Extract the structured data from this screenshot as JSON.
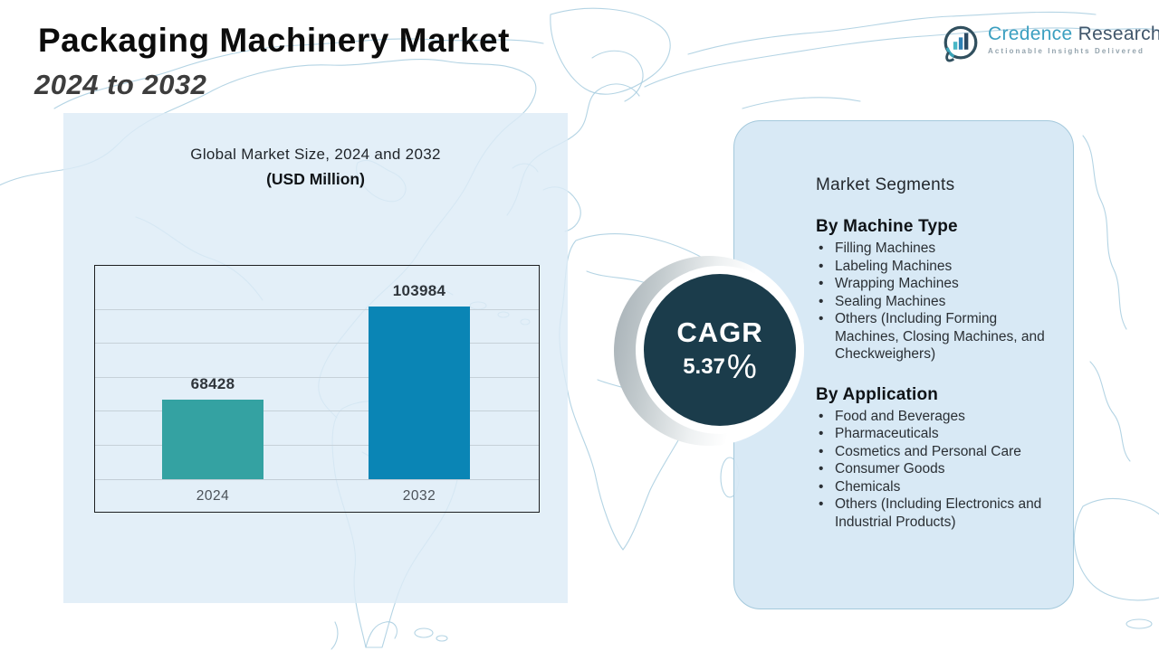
{
  "header": {
    "title": "Packaging Machinery Market",
    "subtitle": "2024 to 2032"
  },
  "logo": {
    "brand_part1": "Credence",
    "brand_part2": " Research",
    "tagline": "Actionable Insights Delivered",
    "icon": "bar-chart-bubble-icon",
    "colors": {
      "brand1": "#3b9fc0",
      "brand2": "#41566b",
      "tagline": "#93a3ad"
    }
  },
  "chart_panel": {
    "title_line1": "Global Market Size, 2024 and 2032",
    "title_line2": "(USD Million)"
  },
  "chart_data": {
    "type": "bar",
    "title": "Global Market Size, 2024 and 2032",
    "subtitle": "(USD Million)",
    "categories": [
      "2024",
      "2032"
    ],
    "values": [
      68428,
      103984
    ],
    "xlabel": "",
    "ylabel": "",
    "ylim": [
      38000,
      120000
    ],
    "grid": true,
    "gridline_count": 5,
    "legend": "none",
    "bar_colors": [
      "#34a2a2",
      "#0a85b5"
    ],
    "value_label_color": "#2f353b",
    "category_label_color": "#4b5158"
  },
  "cagr": {
    "label": "CAGR",
    "value": "5.37",
    "unit": "%",
    "circle_color": "#1b3c4b"
  },
  "segments_panel": {
    "title": "Market Segments",
    "groups": [
      {
        "heading": "By Machine Type",
        "items": [
          "Filling Machines",
          "Labeling Machines",
          "Wrapping Machines",
          "Sealing Machines",
          "Others (Including Forming Machines, Closing Machines, and Checkweighers)"
        ]
      },
      {
        "heading": "By Application",
        "items": [
          "Food and Beverages",
          "Pharmaceuticals",
          "Cosmetics and Personal Care",
          "Consumer Goods",
          "Chemicals",
          "Others (Including Electronics and Industrial Products)"
        ]
      }
    ]
  },
  "colors": {
    "left_panel_bg": "#ddecf6",
    "right_panel_bg": "#d6e8f4",
    "right_panel_border": "#a4c9dc",
    "map_stroke": "#a7cddf",
    "title_text": "#0c0c0c",
    "subtitle_text": "#3d3d3d",
    "cagr_circle": "#1b3c4b",
    "bar_2024": "#34a2a2",
    "bar_2032": "#0a85b5"
  }
}
